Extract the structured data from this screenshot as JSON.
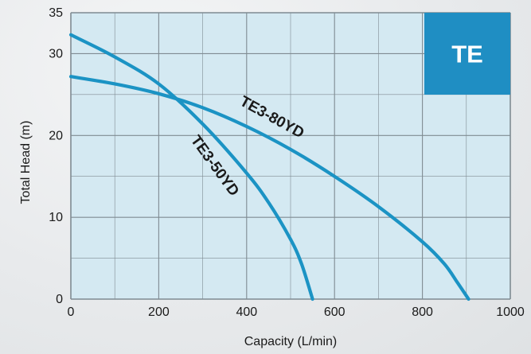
{
  "chart_data": {
    "type": "line",
    "xlabel": "Capacity (L/min)",
    "ylabel": "Total Head (m)",
    "xlim": [
      0,
      1000
    ],
    "ylim": [
      0,
      35
    ],
    "x_ticks": [
      0,
      200,
      400,
      600,
      800,
      1000
    ],
    "y_ticks": [
      0,
      10,
      20,
      30,
      35
    ],
    "x_minor_step": 100,
    "y_minor_step": 5,
    "grid": true,
    "badge": "TE",
    "series": [
      {
        "name": "TE3-80YD",
        "points": [
          [
            0,
            27.2
          ],
          [
            100,
            26.3
          ],
          [
            200,
            25.1
          ],
          [
            300,
            23.4
          ],
          [
            400,
            21.1
          ],
          [
            500,
            18.3
          ],
          [
            600,
            15.0
          ],
          [
            700,
            11.3
          ],
          [
            800,
            7.0
          ],
          [
            850,
            4.3
          ],
          [
            880,
            2.0
          ],
          [
            905,
            0
          ]
        ]
      },
      {
        "name": "TE3-50YD",
        "points": [
          [
            0,
            32.3
          ],
          [
            100,
            29.6
          ],
          [
            200,
            26.3
          ],
          [
            300,
            21.4
          ],
          [
            400,
            15.4
          ],
          [
            450,
            11.8
          ],
          [
            500,
            7.3
          ],
          [
            525,
            4.3
          ],
          [
            550,
            0
          ]
        ]
      }
    ]
  },
  "colors": {
    "plot_bg": "#d4e9f2",
    "grid": "#7f8b92",
    "curve": "#1b93c4",
    "badge_bg": "#1f8ec3",
    "badge_text": "#ffffff"
  }
}
